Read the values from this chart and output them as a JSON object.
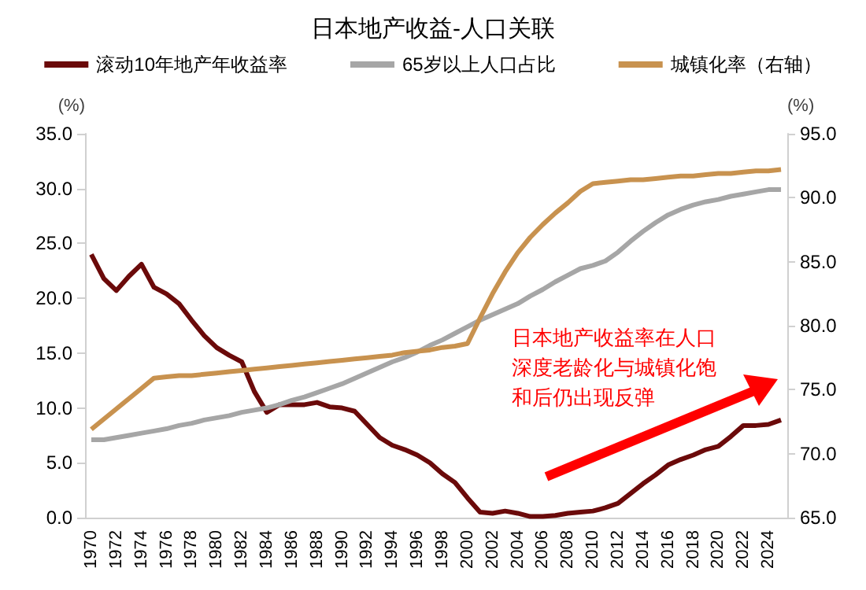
{
  "chart_data": {
    "type": "line",
    "title": "日本地产收益-人口关联",
    "ylabel": "(%)",
    "y2label": "(%)",
    "categories": [
      "1970",
      null,
      "1972",
      null,
      "1974",
      null,
      "1976",
      null,
      "1978",
      null,
      "1980",
      null,
      "1982",
      null,
      "1984",
      null,
      "1986",
      null,
      "1988",
      null,
      "1990",
      null,
      "1992",
      null,
      "1994",
      null,
      "1996",
      null,
      "1998",
      null,
      "2000",
      null,
      "2002",
      null,
      "2004",
      null,
      "2006",
      null,
      "2008",
      null,
      "2010",
      null,
      "2012",
      null,
      "2014",
      null,
      "2016",
      null,
      "2018",
      null,
      "2020",
      null,
      "2022",
      null,
      "2024",
      null
    ],
    "series": [
      {
        "name": "滚动10年地产年收益率",
        "color": "#6b0a0a",
        "values": [
          24.0,
          21.8,
          20.7,
          22.0,
          23.1,
          21.0,
          20.4,
          19.5,
          18.0,
          16.6,
          15.5,
          14.8,
          14.2,
          11.5,
          9.6,
          10.3,
          10.3,
          10.3,
          10.5,
          10.1,
          10.0,
          9.7,
          8.5,
          7.3,
          6.6,
          6.2,
          5.7,
          5.0,
          4.0,
          3.2,
          1.8,
          0.5,
          0.4,
          0.6,
          0.4,
          0.1,
          0.1,
          0.2,
          0.4,
          0.5,
          0.6,
          0.9,
          1.3,
          2.2,
          3.1,
          3.9,
          4.8,
          5.3,
          5.7,
          6.2,
          6.5,
          7.4,
          8.4,
          8.4,
          8.5,
          8.9
        ]
      },
      {
        "name": "65岁以上人口占比",
        "color": "#a6a6a6",
        "values": [
          7.1,
          7.1,
          7.3,
          7.5,
          7.7,
          7.9,
          8.1,
          8.4,
          8.6,
          8.9,
          9.1,
          9.3,
          9.6,
          9.8,
          10.0,
          10.3,
          10.7,
          11.0,
          11.4,
          11.8,
          12.2,
          12.7,
          13.2,
          13.7,
          14.2,
          14.6,
          15.1,
          15.7,
          16.2,
          16.8,
          17.4,
          18.0,
          18.5,
          19.0,
          19.5,
          20.2,
          20.8,
          21.5,
          22.1,
          22.7,
          23.0,
          23.4,
          24.2,
          25.2,
          26.1,
          26.9,
          27.6,
          28.1,
          28.5,
          28.8,
          29.0,
          29.3,
          29.5,
          29.7,
          29.9,
          29.9
        ]
      },
      {
        "name": "城镇化率（右轴）",
        "color": "#c8924f",
        "axis": "y2",
        "values": [
          71.9,
          72.7,
          73.5,
          74.3,
          75.1,
          75.9,
          76.0,
          76.1,
          76.1,
          76.2,
          76.3,
          76.4,
          76.5,
          76.6,
          76.7,
          76.8,
          76.9,
          77.0,
          77.1,
          77.2,
          77.3,
          77.4,
          77.5,
          77.6,
          77.7,
          77.9,
          78.0,
          78.1,
          78.3,
          78.4,
          78.6,
          80.6,
          82.5,
          84.2,
          85.7,
          86.9,
          87.9,
          88.8,
          89.6,
          90.5,
          91.1,
          91.2,
          91.3,
          91.4,
          91.4,
          91.5,
          91.6,
          91.7,
          91.7,
          91.8,
          91.9,
          91.9,
          92.0,
          92.1,
          92.1,
          92.2
        ]
      }
    ],
    "ylim": [
      0,
      35
    ],
    "yticks": [
      {
        "value": 0,
        "label": "0.0"
      },
      {
        "value": 5,
        "label": "5.0"
      },
      {
        "value": 10,
        "label": "10.0"
      },
      {
        "value": 15,
        "label": "15.0"
      },
      {
        "value": 20,
        "label": "20.0"
      },
      {
        "value": 25,
        "label": "25.0"
      },
      {
        "value": 30,
        "label": "30.0"
      },
      {
        "value": 35,
        "label": "35.0"
      }
    ],
    "y2lim": [
      65,
      95
    ],
    "y2ticks": [
      {
        "value": 65,
        "label": "65.0"
      },
      {
        "value": 70,
        "label": "70.0"
      },
      {
        "value": 75,
        "label": "75.0"
      },
      {
        "value": 80,
        "label": "80.0"
      },
      {
        "value": 85,
        "label": "85.0"
      },
      {
        "value": 90,
        "label": "90.0"
      },
      {
        "value": 95,
        "label": "95.0"
      }
    ],
    "annotations": [
      "日本地产收益率在人口深度老龄化与城镇化饱和后仍出现反弹"
    ],
    "legend": "top",
    "grid": false,
    "marker": "none",
    "line_style": "solid"
  }
}
